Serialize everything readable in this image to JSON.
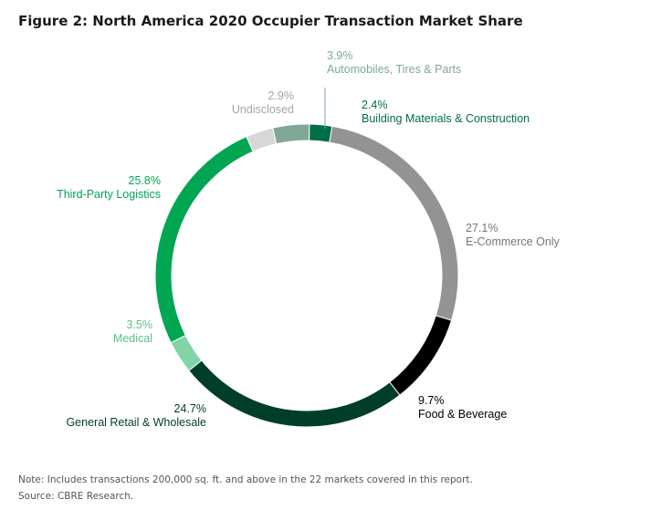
{
  "title": "Figure 2: North America 2020 Occupier Transaction Market Share",
  "note": "Note: Includes transactions 200,000 sq. ft. and above in the 22 markets covered in this report.",
  "source": "Source: CBRE Research.",
  "chart_data": {
    "type": "pie",
    "donut": true,
    "title": "Figure 2: North America 2020 Occupier Transaction Market Share",
    "slices": [
      {
        "label": "Automobiles, Tires & Parts",
        "value": 3.9,
        "display": "3.9%",
        "color": "#7fa896"
      },
      {
        "label": "Building Materials & Construction",
        "value": 2.4,
        "display": "2.4%",
        "color": "#006e47"
      },
      {
        "label": "E-Commerce Only",
        "value": 27.1,
        "display": "27.1%",
        "color": "#939393"
      },
      {
        "label": "Food & Beverage",
        "value": 9.7,
        "display": "9.7%",
        "color": "#000000"
      },
      {
        "label": "General Retail & Wholesale",
        "value": 24.7,
        "display": "24.7%",
        "color": "#003e2a"
      },
      {
        "label": "Medical",
        "value": 3.5,
        "display": "3.5%",
        "color": "#80d4a8"
      },
      {
        "label": "Third-Party Logistics",
        "value": 25.8,
        "display": "25.8%",
        "color": "#00a651"
      },
      {
        "label": "Undisclosed",
        "value": 2.9,
        "display": "2.9%",
        "color": "#d7d7d7"
      }
    ],
    "label_colors": {
      "Automobiles, Tires & Parts": "#7fa896",
      "Building Materials & Construction": "#006e47",
      "E-Commerce Only": "#777777",
      "Food & Beverage": "#000000",
      "General Retail & Wholesale": "#003e2a",
      "Medical": "#5cc08c",
      "Third-Party Logistics": "#00a651",
      "Undisclosed": "#a5a5a5"
    }
  }
}
